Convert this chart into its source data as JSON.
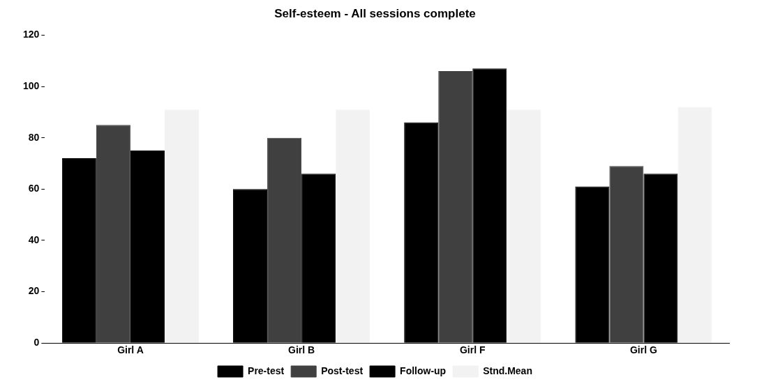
{
  "chart_data": {
    "type": "bar",
    "title": "Self-esteem - All sessions complete",
    "categories": [
      "Girl A",
      "Girl B",
      "Girl F",
      "Girl G"
    ],
    "series": [
      {
        "name": "Pre-test",
        "color": "#000000",
        "values": [
          72,
          60,
          86,
          61
        ]
      },
      {
        "name": "Post-test",
        "color": "#404040",
        "values": [
          85,
          80,
          106,
          69
        ]
      },
      {
        "name": "Follow-up",
        "color": "#000000",
        "values": [
          75,
          66,
          107,
          66
        ]
      },
      {
        "name": "Stnd.Mean",
        "color": "#f2f2f2",
        "values": [
          91,
          91,
          91,
          92
        ]
      }
    ],
    "ylim": [
      0,
      120
    ],
    "yticks": [
      0,
      20,
      40,
      60,
      80,
      100,
      120
    ],
    "grid": false,
    "legend": "bottom"
  }
}
